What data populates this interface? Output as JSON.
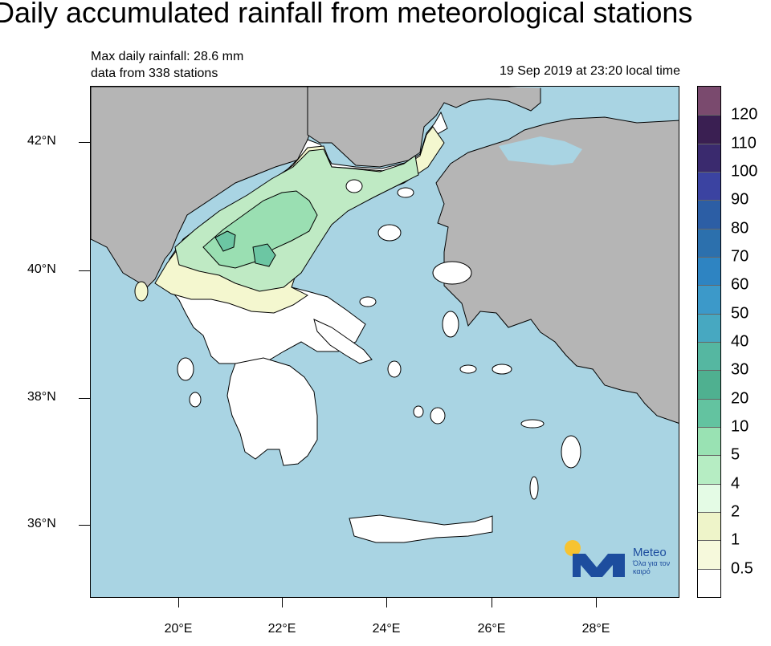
{
  "title": "Daily accumulated rainfall from meteorological stations",
  "subtitle": {
    "max_rainfall": "Max daily rainfall: 28.6 mm",
    "station_count": "data from 338 stations",
    "timestamp": "19 Sep 2019 at 23:20 local time"
  },
  "map": {
    "latitude_labels": [
      "42°N",
      "40°N",
      "38°N",
      "36°N"
    ],
    "longitude_labels": [
      "20°E",
      "22°E",
      "24°E",
      "26°E",
      "28°E"
    ],
    "colors": {
      "sea": "#a9d4e3",
      "neighbor_land": "#b5b5b5",
      "no_rain_land": "#ffffff",
      "light_rain": "#f4f7cf",
      "moderate_rain": "#bfeac4",
      "heavier_rain": "#9adfb2",
      "max_rain": "#6cc6a3"
    }
  },
  "legend": {
    "labels": [
      "120",
      "110",
      "100",
      "90",
      "80",
      "70",
      "60",
      "50",
      "40",
      "30",
      "20",
      "10",
      "5",
      "4",
      "2",
      "1",
      "0.5"
    ],
    "colors": [
      "#7a4a6e",
      "#3a1f52",
      "#3a2a6e",
      "#3b43a1",
      "#2c5ea5",
      "#2c70ad",
      "#2e84c2",
      "#3c99c9",
      "#47a8c1",
      "#55b7a1",
      "#4fb090",
      "#63c3a0",
      "#99e2b3",
      "#b6edc3",
      "#e4fbe5",
      "#eef4c9",
      "#f6f9dc",
      "#ffffff"
    ]
  },
  "logo": {
    "brand": "Meteo",
    "tagline": "Όλα για τον καιρό"
  }
}
